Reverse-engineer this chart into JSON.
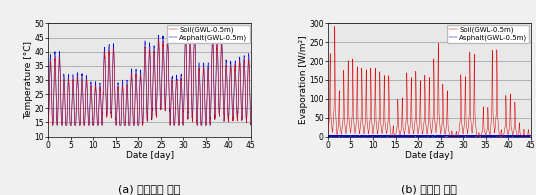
{
  "left_plot": {
    "xlabel": "Date [day]",
    "ylabel": "Temperature [°C]",
    "xlim": [
      0,
      45
    ],
    "ylim": [
      10,
      50
    ],
    "yticks": [
      10,
      15,
      20,
      25,
      30,
      35,
      40,
      45,
      50
    ],
    "xticks": [
      0,
      5,
      10,
      15,
      20,
      25,
      30,
      35,
      40,
      45
    ],
    "legend1": "Soil(GWL-0.5m)",
    "legend2": "Asphalt(GWL-0.5m)",
    "color1": "#dd0000",
    "color2": "#0000cc",
    "caption": "(a) 포장조건 비교"
  },
  "right_plot": {
    "xlabel": "Date [day]",
    "ylabel": "Evaporation [W/m²]",
    "xlim": [
      0,
      45
    ],
    "ylim": [
      0,
      300
    ],
    "yticks": [
      0,
      50,
      100,
      150,
      200,
      250,
      300
    ],
    "xticks": [
      0,
      5,
      10,
      15,
      20,
      25,
      30,
      35,
      40,
      45
    ],
    "legend1": "Soil(GWL-0.5m)",
    "legend2": "Asphalt(GWL-0.5m)",
    "color1": "#dd0000",
    "color2": "#0000cc",
    "caption": "(b) 증발량 비교"
  },
  "fig_bg": "#f0f0f0",
  "axes_bg": "#e8e8e8",
  "grid_color": "#999999",
  "tick_fontsize": 5.5,
  "label_fontsize": 6.5,
  "legend_fontsize": 5.0,
  "caption_fontsize": 8.0
}
